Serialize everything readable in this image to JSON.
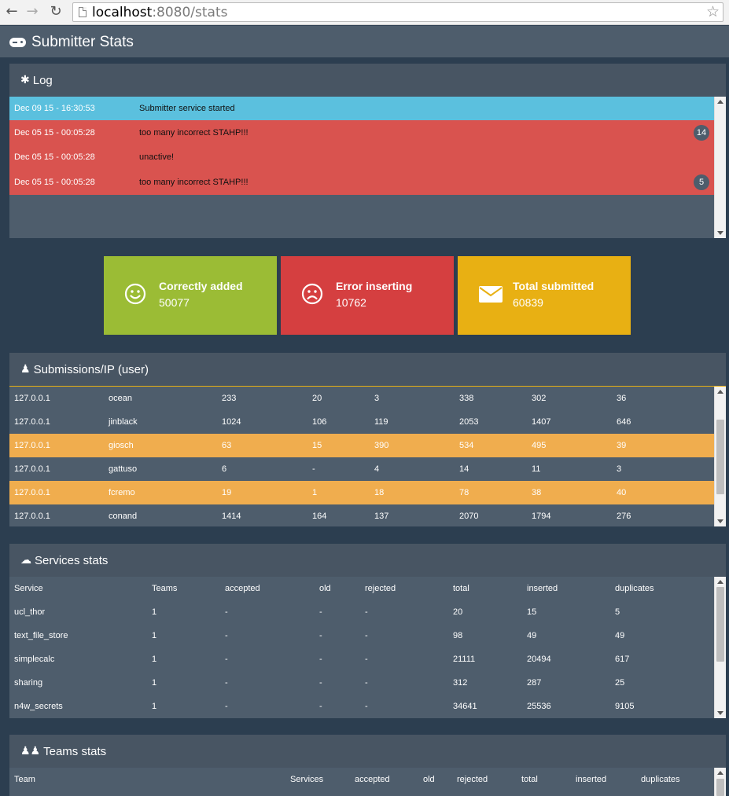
{
  "browser": {
    "url_host": "localhost",
    "url_path": ":8080/stats",
    "back_icon": "arrow-left-icon",
    "forward_icon": "arrow-right-icon",
    "reload_icon": "reload-icon",
    "star_icon": "star-icon"
  },
  "app": {
    "title": "Submitter Stats",
    "icon": "gamepad-icon"
  },
  "log": {
    "title": "Log",
    "icon": "bug-icon",
    "rows": [
      {
        "date": "Dec 09 15 - 16:30:53",
        "message": "Submitter service started",
        "badge": "",
        "level": "info"
      },
      {
        "date": "Dec 05 15 - 00:05:28",
        "message": "too many incorrect STAHP!!!",
        "badge": "14",
        "level": "danger"
      },
      {
        "date": "Dec 05 15 - 00:05:28",
        "message": "unactive!",
        "badge": "",
        "level": "danger"
      },
      {
        "date": "Dec 05 15 - 00:05:28",
        "message": "too many incorrect STAHP!!!",
        "badge": "5",
        "level": "danger"
      }
    ]
  },
  "stats": [
    {
      "label": "Correctly added",
      "value": "50077",
      "icon": "smile-icon",
      "color": "#9bbc35"
    },
    {
      "label": "Error inserting",
      "value": "10762",
      "icon": "frown-icon",
      "color": "#d53f40"
    },
    {
      "label": "Total submitted",
      "value": "60839",
      "icon": "envelope-icon",
      "color": "#e8b013"
    }
  ],
  "submissions": {
    "title": "Submissions/IP (user)",
    "icon": "user-icon",
    "rows": [
      {
        "cells": [
          "127.0.0.1",
          "ocean",
          "233",
          "20",
          "3",
          "338",
          "302",
          "36"
        ],
        "highlight": false
      },
      {
        "cells": [
          "127.0.0.1",
          "jinblack",
          "1024",
          "106",
          "119",
          "2053",
          "1407",
          "646"
        ],
        "highlight": false
      },
      {
        "cells": [
          "127.0.0.1",
          "giosch",
          "63",
          "15",
          "390",
          "534",
          "495",
          "39"
        ],
        "highlight": true
      },
      {
        "cells": [
          "127.0.0.1",
          "gattuso",
          "6",
          "-",
          "4",
          "14",
          "11",
          "3"
        ],
        "highlight": false
      },
      {
        "cells": [
          "127.0.0.1",
          "fcremo",
          "19",
          "1",
          "18",
          "78",
          "38",
          "40"
        ],
        "highlight": true
      },
      {
        "cells": [
          "127.0.0.1",
          "conand",
          "1414",
          "164",
          "137",
          "2070",
          "1794",
          "276"
        ],
        "highlight": false
      }
    ]
  },
  "services": {
    "title": "Services stats",
    "icon": "cloud-icon",
    "headers": [
      "Service",
      "Teams",
      "accepted",
      "old",
      "rejected",
      "total",
      "inserted",
      "duplicates"
    ],
    "rows": [
      [
        "ucl_thor",
        "1",
        "-",
        "-",
        "-",
        "20",
        "15",
        "5"
      ],
      [
        "text_file_store",
        "1",
        "-",
        "-",
        "-",
        "98",
        "49",
        "49"
      ],
      [
        "simplecalc",
        "1",
        "-",
        "-",
        "-",
        "21111",
        "20494",
        "617"
      ],
      [
        "sharing",
        "1",
        "-",
        "-",
        "-",
        "312",
        "287",
        "25"
      ],
      [
        "n4w_secrets",
        "1",
        "-",
        "-",
        "-",
        "34641",
        "25536",
        "9105"
      ]
    ]
  },
  "teams": {
    "title": "Teams stats",
    "icon": "users-icon",
    "headers": [
      "Team",
      "Services",
      "accepted",
      "old",
      "rejected",
      "total",
      "inserted",
      "duplicates"
    ]
  }
}
